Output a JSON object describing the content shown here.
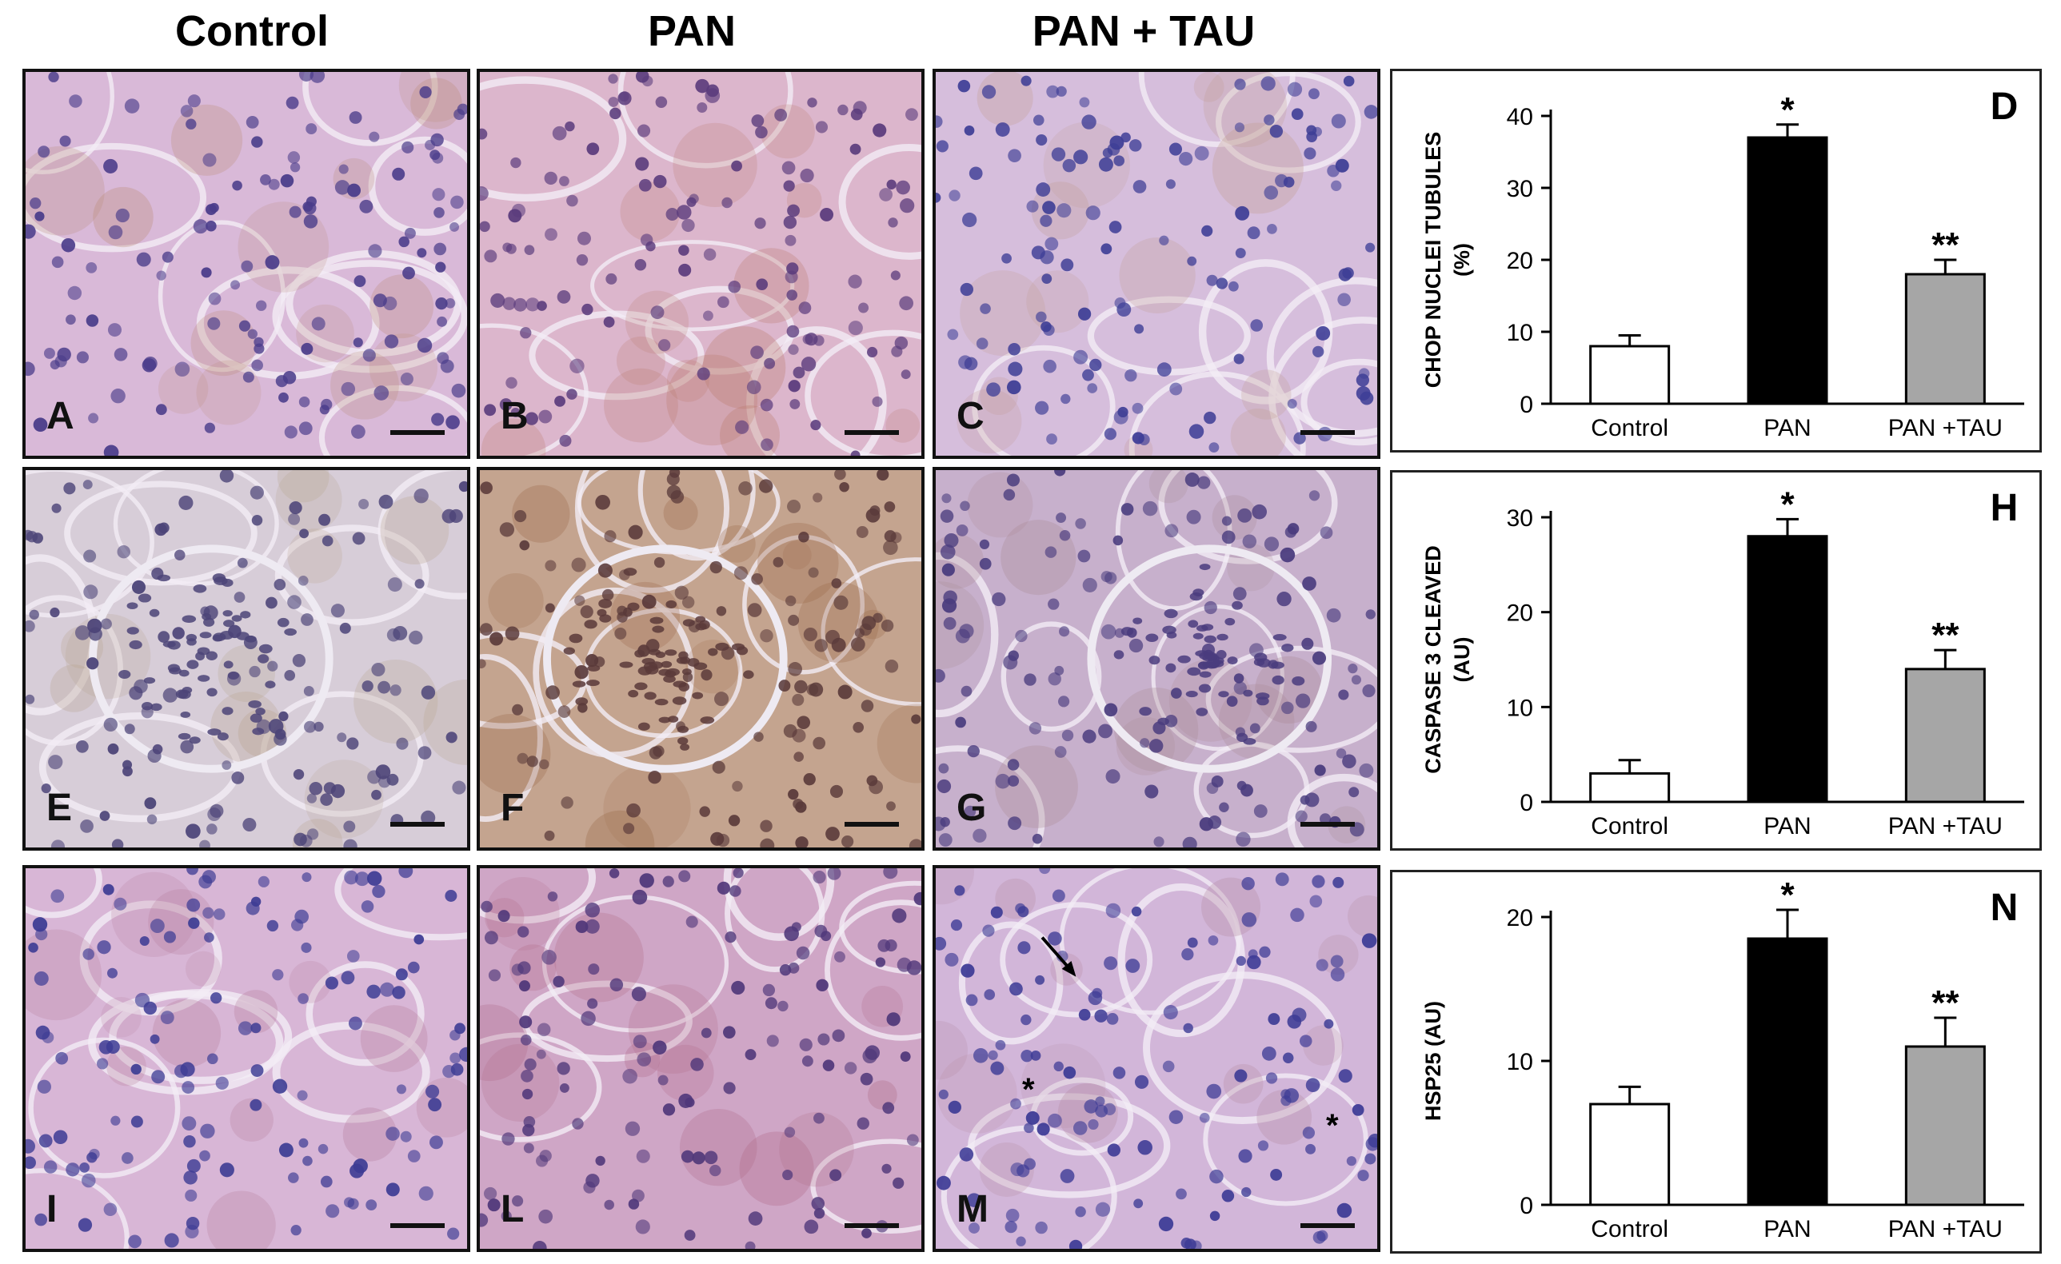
{
  "column_headers": [
    "Control",
    "PAN",
    "PAN + TAU"
  ],
  "micrographs": [
    {
      "label": "A",
      "tint": "#d9b9d8",
      "nuclei": "#4a3c8a",
      "brown": "#b98a74",
      "seed": 11
    },
    {
      "label": "B",
      "tint": "#dcb6cc",
      "nuclei": "#5a3b7c",
      "brown": "#b9786a",
      "seed": 23
    },
    {
      "label": "C",
      "tint": "#d6bedc",
      "nuclei": "#3e3e96",
      "brown": "#c09a8e",
      "seed": 37
    },
    {
      "label": "E",
      "tint": "#d7cdd8",
      "nuclei": "#4c4478",
      "brown": "#b7a38c",
      "seed": 41
    },
    {
      "label": "F",
      "tint": "#c4a48f",
      "nuclei": "#5a3a3a",
      "brown": "#9b6a4a",
      "seed": 53
    },
    {
      "label": "G",
      "tint": "#c7b0cc",
      "nuclei": "#4a3c7e",
      "brown": "#a98a94",
      "seed": 67
    },
    {
      "label": "I",
      "tint": "#d8b6d6",
      "nuclei": "#3d3c94",
      "brown": "#b57d9a",
      "seed": 71
    },
    {
      "label": "L",
      "tint": "#cfa6c6",
      "nuclei": "#50387a",
      "brown": "#b06a88",
      "seed": 83
    },
    {
      "label": "M",
      "tint": "#d2b6d9",
      "nuclei": "#3e3c96",
      "brown": "#b48aa0",
      "seed": 97
    }
  ],
  "chart_data": [
    {
      "type": "bar",
      "panel_letter": "D",
      "ylabel": "CHOP  NUCLEI TUBULES",
      "ylabel2": "(%)",
      "categories": [
        "Control",
        "PAN",
        "PAN +TAU"
      ],
      "values": [
        8,
        37,
        18
      ],
      "errors": [
        1.5,
        1.8,
        2
      ],
      "significance": [
        "",
        "*",
        "**"
      ],
      "ylim": [
        0,
        40
      ],
      "yticks": [
        "0",
        "10",
        "20",
        "30",
        "40"
      ],
      "bar_colors": [
        "#ffffff",
        "#000000",
        "#a6a6a6"
      ]
    },
    {
      "type": "bar",
      "panel_letter": "H",
      "ylabel": "CASPASE 3 CLEAVED",
      "ylabel2": "(AU)",
      "categories": [
        "Control",
        "PAN",
        "PAN +TAU"
      ],
      "values": [
        3,
        28,
        14
      ],
      "errors": [
        1.4,
        1.8,
        2
      ],
      "significance": [
        "",
        "*",
        "**"
      ],
      "ylim": [
        0,
        30
      ],
      "yticks": [
        "0",
        "10",
        "20",
        "30"
      ],
      "bar_colors": [
        "#ffffff",
        "#000000",
        "#a6a6a6"
      ]
    },
    {
      "type": "bar",
      "panel_letter": "N",
      "ylabel": "HSP25 (AU)",
      "ylabel2": "",
      "categories": [
        "Control",
        "PAN",
        "PAN +TAU"
      ],
      "values": [
        7,
        18.5,
        11
      ],
      "errors": [
        1.2,
        2,
        2
      ],
      "significance": [
        "",
        "*",
        "**"
      ],
      "ylim": [
        0,
        20
      ],
      "yticks": [
        "0",
        "10",
        "20"
      ],
      "bar_colors": [
        "#ffffff",
        "#000000",
        "#a6a6a6"
      ]
    }
  ],
  "annotations": {
    "asterisk": "*",
    "arrow": "arrow"
  }
}
